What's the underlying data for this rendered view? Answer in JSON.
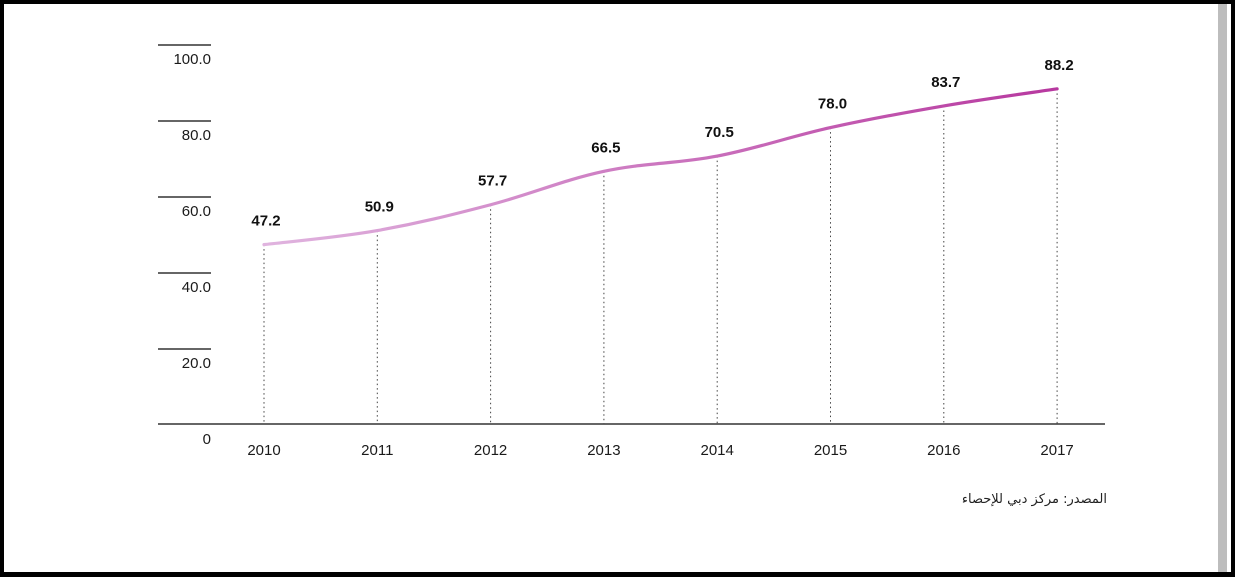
{
  "source_note": "المصدر: مركز دبي للإحصاء",
  "colors": {
    "line_start": "#e0b4df",
    "line_end": "#b7389f",
    "axis": "#333333"
  },
  "chart_data": {
    "type": "line",
    "title": "",
    "xlabel": "",
    "ylabel": "",
    "categories": [
      "2010",
      "2011",
      "2012",
      "2013",
      "2014",
      "2015",
      "2016",
      "2017"
    ],
    "series": [
      {
        "values": [
          47.2,
          50.9,
          57.7,
          66.5,
          70.5,
          78.0,
          83.7,
          88.2
        ],
        "labels": [
          "47.2",
          "50.9",
          "57.7",
          "66.5",
          "70.5",
          "78.0",
          "83.7",
          "88.2"
        ]
      }
    ],
    "ylim": [
      0,
      100
    ],
    "y_ticks": [
      {
        "value": 0,
        "label": "0"
      },
      {
        "value": 20,
        "label": "20.0"
      },
      {
        "value": 40,
        "label": "40.0"
      },
      {
        "value": 60,
        "label": "60.0"
      },
      {
        "value": 80,
        "label": "80.0"
      },
      {
        "value": 100,
        "label": "100.0"
      }
    ],
    "vertical_guides": "dotted",
    "legend": "none"
  }
}
